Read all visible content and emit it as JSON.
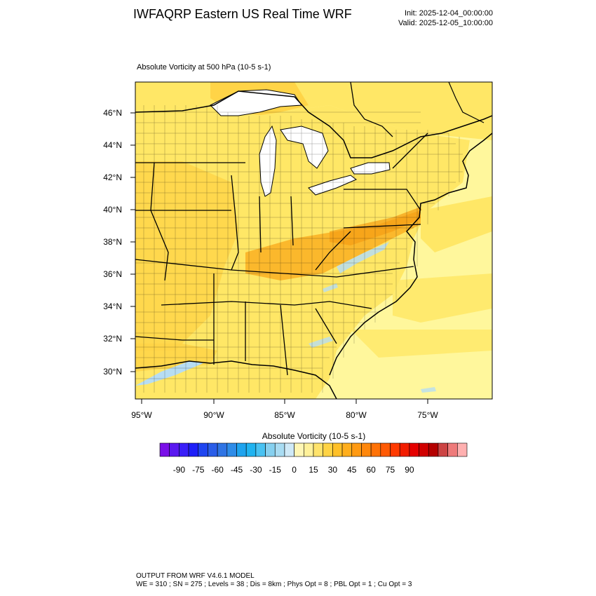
{
  "header": {
    "title": "IWFAQRP Eastern US Real Time WRF",
    "init": "Init: 2025-12-04_00:00:00",
    "valid": "Valid: 2025-12-05_10:00:00"
  },
  "field": {
    "title": "Absolute Vorticity at 500 hPa   (10-5 s-1)"
  },
  "map": {
    "lat_labels": [
      "46°N",
      "44°N",
      "42°N",
      "40°N",
      "38°N",
      "36°N",
      "34°N",
      "32°N",
      "30°N"
    ],
    "lon_labels": [
      "95°W",
      "90°W",
      "85°W",
      "80°W",
      "75°W"
    ],
    "colors": {
      "water": "#ffffff",
      "base": "#ffe766",
      "light": "#fff79c",
      "mid": "#ffd447",
      "strong": "#f9a819",
      "negative": "#b7ddf2"
    }
  },
  "colorbar": {
    "title": "Absolute Vorticity  (10-5 s-1)",
    "labels": [
      "-90",
      "-75",
      "-60",
      "-45",
      "-30",
      "-15",
      "0",
      "15",
      "30",
      "45",
      "60",
      "75",
      "90"
    ],
    "colors": [
      "#7a10e8",
      "#5a18f0",
      "#3a1ff8",
      "#1e1ff8",
      "#1f45f0",
      "#2a5de8",
      "#2f74e4",
      "#2e8ce8",
      "#1ea3ee",
      "#20b3f0",
      "#48c2f2",
      "#86d0ef",
      "#a9dcf2",
      "#cfe9f7",
      "#fff6b5",
      "#fff19a",
      "#ffe36b",
      "#ffd344",
      "#ffc028",
      "#ffae1c",
      "#ff9a12",
      "#ff870b",
      "#ff7206",
      "#ff5a04",
      "#ff3a00",
      "#f21d00",
      "#e50000",
      "#d00000",
      "#b40000",
      "#cc4444",
      "#ee7a7a",
      "#ffb0b0"
    ]
  },
  "footer": {
    "line1": "OUTPUT FROM WRF V4.6.1 MODEL",
    "line2": "WE = 310 ; SN = 275 ; Levels = 38 ; Dis = 8km ; Phys Opt = 8 ; PBL Opt = 1 ; Cu Opt = 3"
  }
}
